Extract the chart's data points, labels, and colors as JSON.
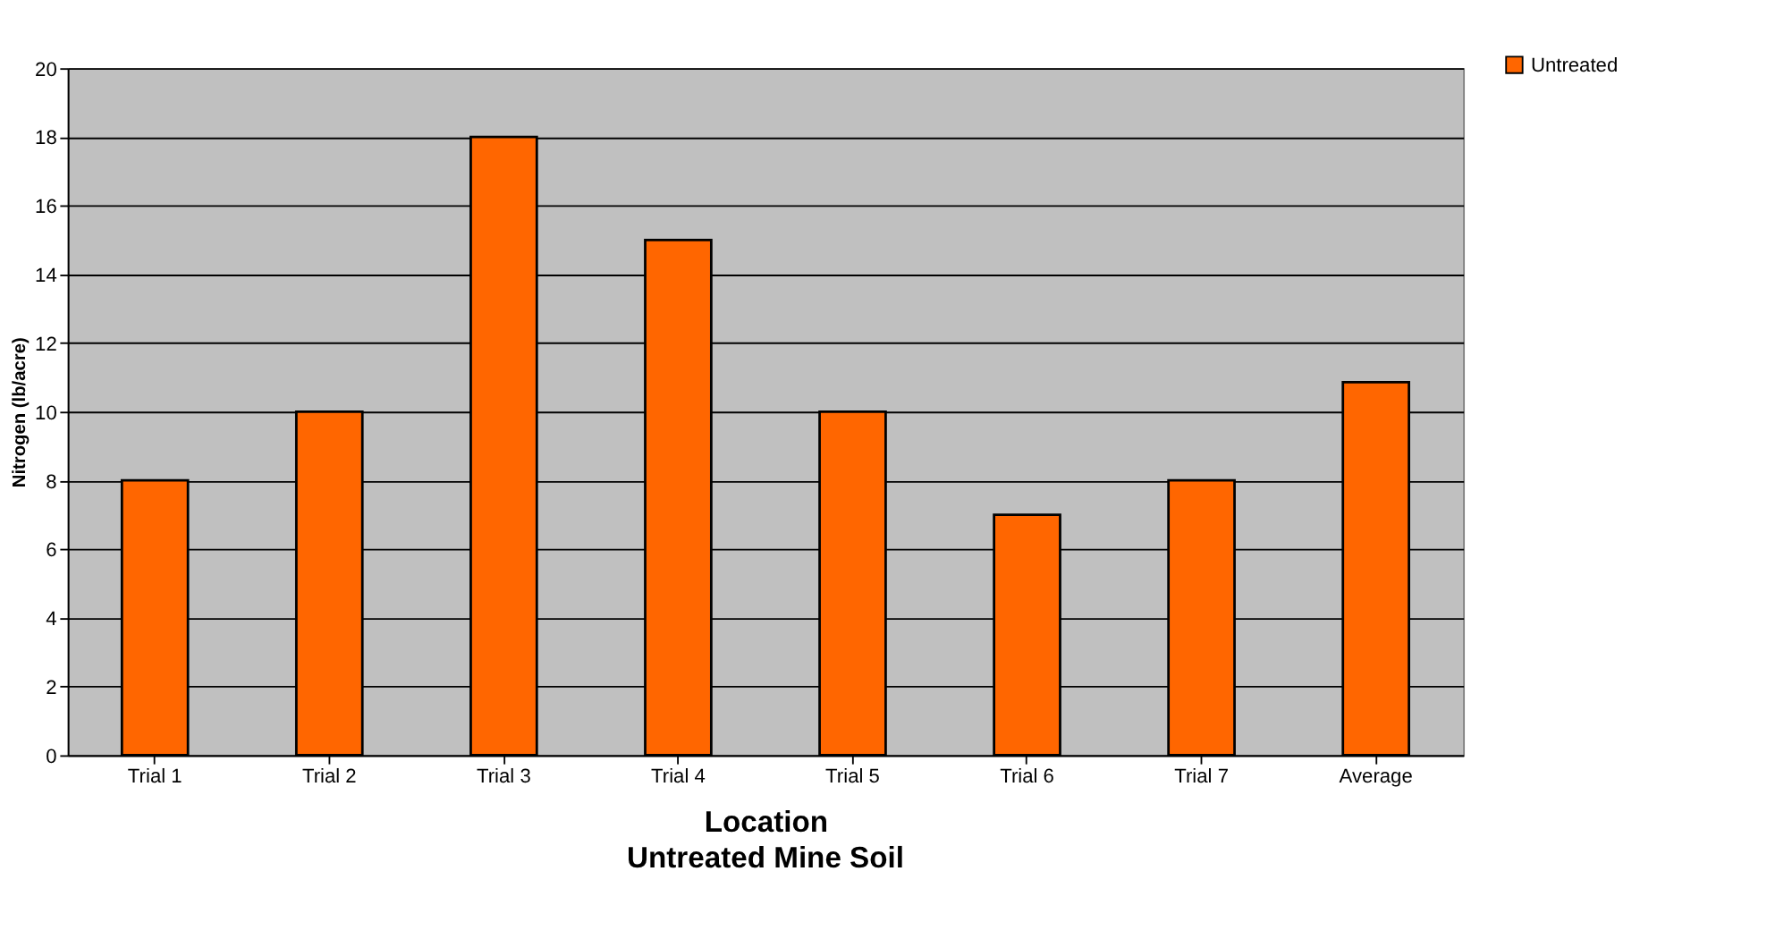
{
  "chart_data": {
    "type": "bar",
    "title": "Untreated Mine Soil",
    "xlabel": "Location",
    "ylabel": "Nitrogen (lb/acre)",
    "categories": [
      "Trial 1",
      "Trial 2",
      "Trial 3",
      "Trial 4",
      "Trial 5",
      "Trial 6",
      "Trial 7",
      "Average"
    ],
    "series": [
      {
        "name": "Untreated",
        "color": "#ff6600",
        "values": [
          8,
          10,
          18,
          15,
          10,
          7,
          8,
          10.86
        ]
      }
    ],
    "ylim": [
      0,
      20
    ],
    "yticks": [
      0,
      2,
      4,
      6,
      8,
      10,
      12,
      14,
      16,
      18,
      20
    ],
    "grid": "y",
    "legend": "top right"
  }
}
